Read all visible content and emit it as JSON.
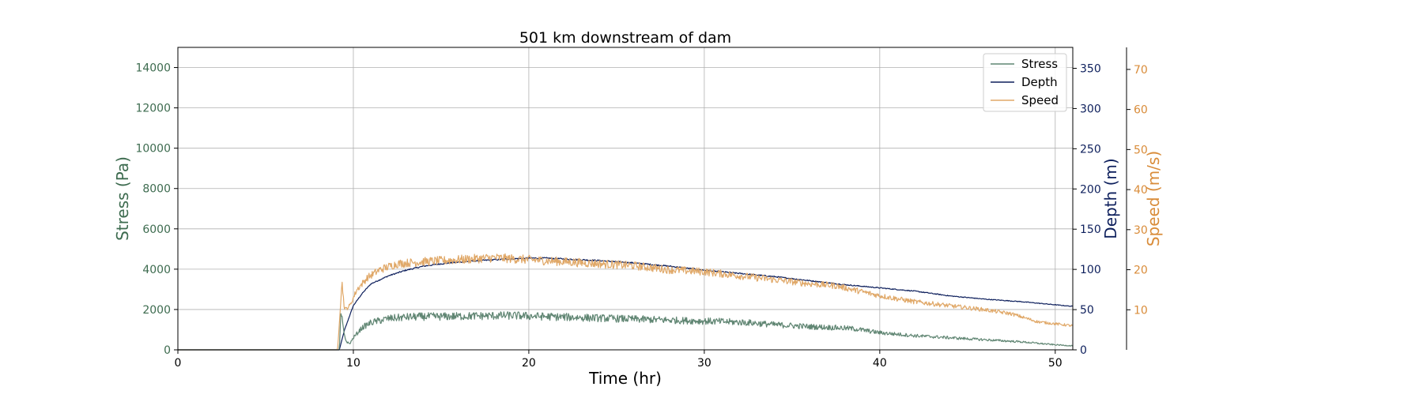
{
  "chart_data": {
    "type": "line",
    "title": "501 km downstream of dam",
    "xlabel": "Time (hr)",
    "xlim": [
      0,
      51
    ],
    "xticks": [
      "0",
      "10",
      "20",
      "30",
      "40",
      "50"
    ],
    "grid": true,
    "legend_placement": "top-right",
    "axes": {
      "stress": {
        "label": "Stress (Pa)",
        "color": "#3d6b4f",
        "ylim": [
          0,
          15000
        ],
        "ticks": [
          "0",
          "2000",
          "4000",
          "6000",
          "8000",
          "10000",
          "12000",
          "14000"
        ]
      },
      "depth": {
        "label": "Depth (m)",
        "color": "#0d1f5c",
        "ylim": [
          0,
          376
        ],
        "ticks": [
          "0",
          "50",
          "100",
          "150",
          "200",
          "250",
          "300",
          "350"
        ]
      },
      "speed": {
        "label": "Speed (m/s)",
        "color": "#d98c3a",
        "ylim": [
          0,
          75.5
        ],
        "ticks": [
          "10",
          "20",
          "30",
          "40",
          "50",
          "60",
          "70"
        ]
      }
    },
    "series": [
      {
        "name": "Stress",
        "axis": "stress",
        "color": "#5f8572",
        "noise": 0.12,
        "x": [
          0,
          9.2,
          9.3,
          9.45,
          9.6,
          9.8,
          10,
          10.5,
          11,
          12,
          13,
          14,
          15,
          17,
          19,
          21,
          23,
          25,
          27,
          29,
          31,
          32.5,
          34,
          36,
          37.5,
          38.5,
          40,
          42,
          44,
          46,
          48,
          50,
          51
        ],
        "y": [
          0,
          0,
          1900,
          900,
          400,
          300,
          600,
          1100,
          1350,
          1550,
          1620,
          1650,
          1650,
          1680,
          1700,
          1650,
          1600,
          1550,
          1500,
          1450,
          1400,
          1350,
          1250,
          1150,
          1100,
          1050,
          850,
          700,
          600,
          500,
          400,
          250,
          200
        ]
      },
      {
        "name": "Depth",
        "axis": "depth",
        "color": "#0d1f5c",
        "noise": 0.008,
        "x": [
          0,
          9.2,
          9.5,
          10,
          10.5,
          11,
          12,
          13,
          14,
          15,
          16,
          18,
          20,
          21,
          22,
          24,
          26,
          28,
          30,
          32,
          34,
          36,
          38,
          40,
          42,
          44,
          46,
          48,
          50,
          51
        ],
        "y": [
          0,
          0,
          25,
          55,
          70,
          82,
          92,
          99,
          104,
          107,
          109,
          112,
          114,
          114,
          113,
          111,
          108,
          104,
          99,
          95,
          91,
          86,
          81,
          77,
          73,
          67,
          63,
          60,
          56,
          54
        ]
      },
      {
        "name": "Speed",
        "axis": "speed",
        "color": "#e0a868",
        "noise": 0.05,
        "x": [
          0,
          9.1,
          9.35,
          9.5,
          9.8,
          10.2,
          10.8,
          11.5,
          12.5,
          14,
          16,
          18,
          20,
          22,
          24,
          26,
          28,
          30,
          32,
          34,
          36,
          37.5,
          38.5,
          40,
          42,
          44,
          46,
          47.5,
          49,
          51
        ],
        "y": [
          0,
          0,
          17,
          10,
          11,
          15,
          18,
          20,
          21.5,
          22,
          22.5,
          23,
          22.5,
          22,
          21.5,
          21,
          20,
          19.5,
          18.5,
          17.5,
          16.5,
          16,
          15,
          13.5,
          12,
          11,
          10,
          9,
          7,
          6
        ]
      }
    ]
  }
}
